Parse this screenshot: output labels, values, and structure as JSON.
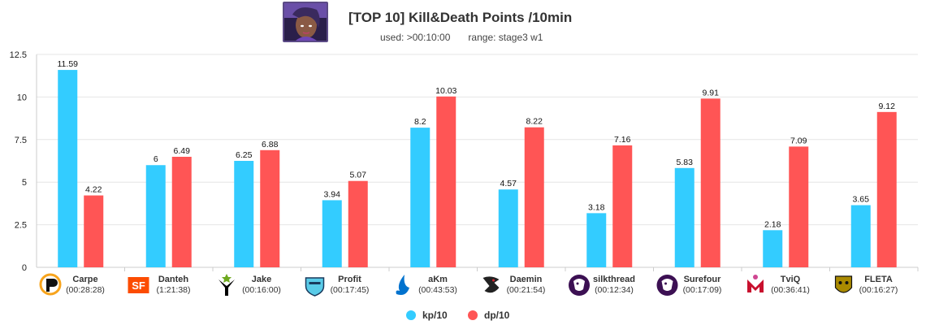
{
  "header": {
    "title": "[TOP 10] Kill&Death Points /10min",
    "used_label": "used: >00:10:00",
    "range_label": "range: stage3 w1"
  },
  "chart_data": {
    "type": "bar",
    "title": "[TOP 10] Kill&Death Points /10min",
    "xlabel": "",
    "ylabel": "",
    "ylim": [
      0,
      12.5
    ],
    "yticks": [
      0,
      2.5,
      5,
      7.5,
      10,
      12.5
    ],
    "ytick_labels": [
      "0",
      "2.5",
      "5",
      "7.5",
      "10",
      "12.5"
    ],
    "grid": true,
    "legend_position": "bottom-center",
    "categories": [
      {
        "name": "Carpe",
        "time": "(00:28:28)",
        "team_icon": "fusion-logo-icon",
        "color": "#f7a41d"
      },
      {
        "name": "Danteh",
        "time": "(1:21:38)",
        "team_icon": "sf-shock-logo-icon",
        "color": "#fc4c02"
      },
      {
        "name": "Jake",
        "time": "(00:16:00)",
        "team_icon": "outlaws-logo-icon",
        "color": "#000000"
      },
      {
        "name": "Profit",
        "time": "(00:17:45)",
        "team_icon": "london-spitfire-logo-icon",
        "color": "#59cbe8"
      },
      {
        "name": "aKm",
        "time": "(00:43:53)",
        "team_icon": "dallas-fuel-logo-icon",
        "color": "#0072ce"
      },
      {
        "name": "Daemin",
        "time": "(00:21:54)",
        "team_icon": "shanghai-dragons-logo-icon",
        "color": "#222222"
      },
      {
        "name": "silkthread",
        "time": "(00:12:34)",
        "team_icon": "la-gladiators-logo-icon",
        "color": "#3c1053"
      },
      {
        "name": "Surefour",
        "time": "(00:17:09)",
        "team_icon": "la-gladiators-logo-icon",
        "color": "#3c1053"
      },
      {
        "name": "TviQ",
        "time": "(00:36:41)",
        "team_icon": "florida-mayhem-logo-icon",
        "color": "#cf4691"
      },
      {
        "name": "FLETA",
        "time": "(00:16:27)",
        "team_icon": "seoul-dynasty-logo-icon",
        "color": "#aa8a00"
      }
    ],
    "series": [
      {
        "name": "kp/10",
        "color": "#33ccff",
        "values": [
          11.59,
          6,
          6.25,
          3.94,
          8.2,
          4.57,
          3.18,
          5.83,
          2.18,
          3.65
        ],
        "labels": [
          "11.59",
          "6",
          "6.25",
          "3.94",
          "8.2",
          "4.57",
          "3.18",
          "5.83",
          "2.18",
          "3.65"
        ]
      },
      {
        "name": "dp/10",
        "color": "#ff5555",
        "values": [
          4.22,
          6.49,
          6.88,
          5.07,
          10.03,
          8.22,
          7.16,
          9.91,
          7.09,
          9.12
        ],
        "labels": [
          "4.22",
          "6.49",
          "6.88",
          "5.07",
          "10.03",
          "8.22",
          "7.16",
          "9.91",
          "7.09",
          "9.12"
        ]
      }
    ]
  }
}
